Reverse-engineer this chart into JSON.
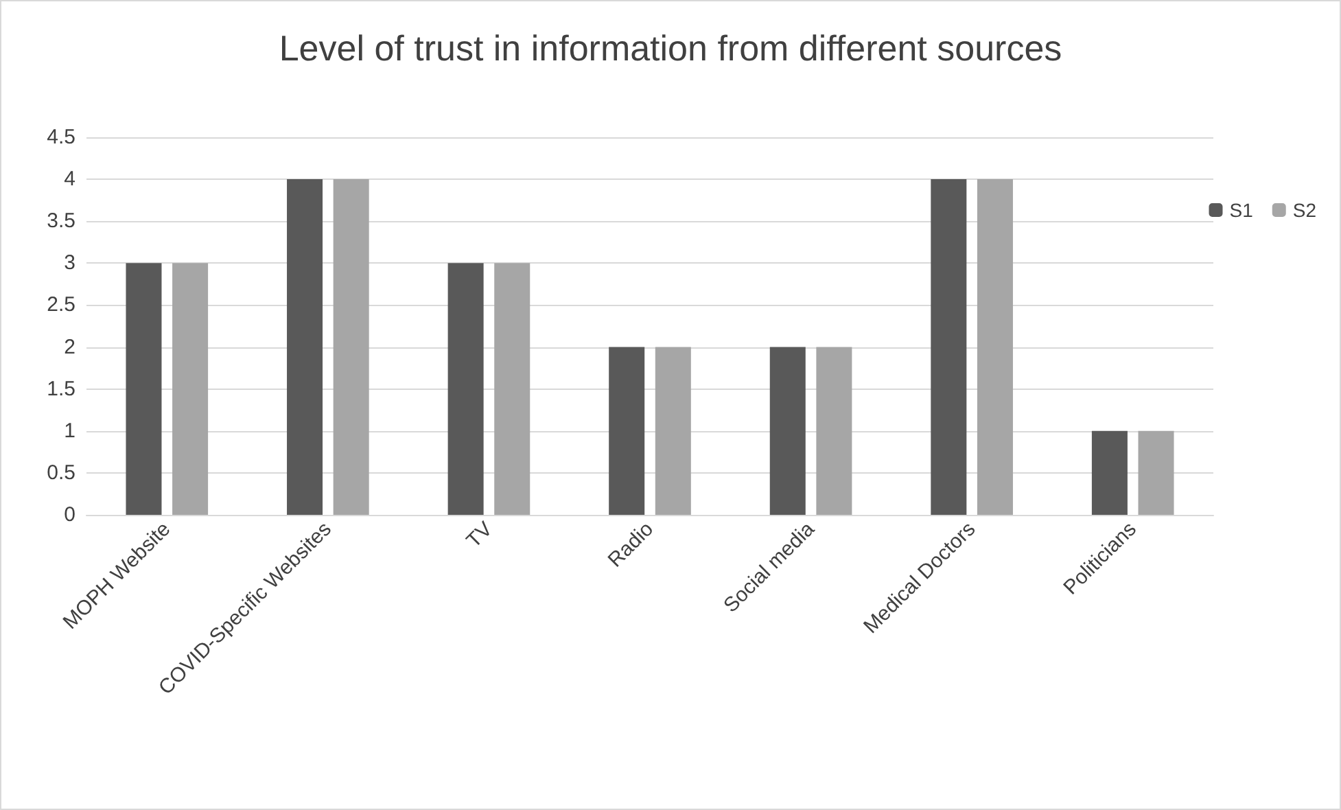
{
  "chart_data": {
    "type": "bar",
    "title": "Level of trust in information from different sources",
    "categories": [
      "MOPH Website",
      "COVID-Specific Websites",
      "TV",
      "Radio",
      "Social media",
      "Medical Doctors",
      "Politicians"
    ],
    "series": [
      {
        "name": "S1",
        "color": "#595959",
        "values": [
          3,
          4,
          3,
          2,
          2,
          4,
          1
        ]
      },
      {
        "name": "S2",
        "color": "#a6a6a6",
        "values": [
          3,
          4,
          3,
          2,
          2,
          4,
          1
        ]
      }
    ],
    "ylim": [
      0,
      4.5
    ],
    "yticks": [
      0,
      0.5,
      1,
      1.5,
      2,
      2.5,
      3,
      3.5,
      4,
      4.5
    ],
    "grid": "y",
    "legend": "right"
  }
}
